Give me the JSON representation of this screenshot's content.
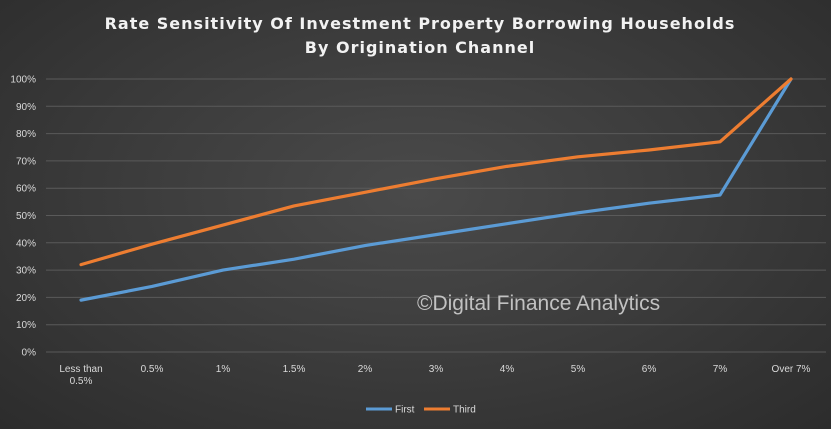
{
  "chart_data": {
    "type": "line",
    "title_lines": [
      "Rate Sensitivity Of Investment Property Borrowing Households",
      "By Origination Channel"
    ],
    "xlabel": "",
    "ylabel": "",
    "categories": [
      "Less than 0.5%",
      "0.5%",
      "1%",
      "1.5%",
      "2%",
      "3%",
      "4%",
      "5%",
      "6%",
      "7%",
      "Over 7%"
    ],
    "category_label_lines": [
      [
        "Less than",
        "0.5%"
      ],
      [
        "0.5%"
      ],
      [
        "1%"
      ],
      [
        "1.5%"
      ],
      [
        "2%"
      ],
      [
        "3%"
      ],
      [
        "4%"
      ],
      [
        "5%"
      ],
      [
        "6%"
      ],
      [
        "7%"
      ],
      [
        "Over 7%"
      ]
    ],
    "y_ticks": [
      "0%",
      "10%",
      "20%",
      "30%",
      "40%",
      "50%",
      "60%",
      "70%",
      "80%",
      "90%",
      "100%"
    ],
    "ylim": [
      0,
      100
    ],
    "grid": true,
    "legend_position": "bottom",
    "series": [
      {
        "name": "First",
        "color": "#5b9bd5",
        "values": [
          19,
          24,
          30,
          34,
          39,
          43,
          47,
          51,
          54.5,
          57.5,
          100
        ]
      },
      {
        "name": "Third",
        "color": "#ed7d31",
        "values": [
          32,
          39.5,
          46.5,
          53.5,
          58.5,
          63.5,
          68,
          71.5,
          74,
          77,
          100
        ]
      }
    ]
  },
  "watermark": "©Digital Finance Analytics",
  "colors": {
    "background": "#3a3a3a",
    "grid": "#5a5a5a",
    "text": "#d9d9d9"
  }
}
